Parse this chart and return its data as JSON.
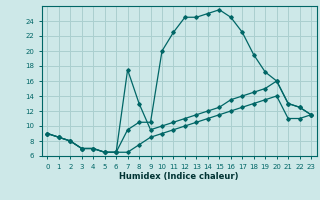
{
  "xlabel": "Humidex (Indice chaleur)",
  "background_color": "#cde8e8",
  "grid_color": "#aacfcf",
  "line_color": "#006666",
  "xlim": [
    -0.5,
    23.5
  ],
  "ylim": [
    6,
    26
  ],
  "yticks": [
    6,
    8,
    10,
    12,
    14,
    16,
    18,
    20,
    22,
    24
  ],
  "xticks": [
    0,
    1,
    2,
    3,
    4,
    5,
    6,
    7,
    8,
    9,
    10,
    11,
    12,
    13,
    14,
    15,
    16,
    17,
    18,
    19,
    20,
    21,
    22,
    23
  ],
  "line1_x": [
    0,
    1,
    2,
    3,
    4,
    5,
    6,
    7,
    8,
    9,
    10,
    11,
    12,
    13,
    14,
    15,
    16,
    17,
    18,
    19,
    20,
    21,
    22,
    23
  ],
  "line1_y": [
    9.0,
    8.5,
    8.0,
    7.0,
    7.0,
    6.5,
    6.5,
    9.5,
    10.5,
    10.5,
    20.0,
    22.5,
    24.5,
    24.5,
    25.0,
    25.5,
    24.5,
    22.5,
    19.5,
    17.2,
    16.0,
    13.0,
    12.5,
    11.5
  ],
  "line2_x": [
    0,
    1,
    2,
    3,
    4,
    5,
    6,
    7,
    8,
    9,
    10,
    11,
    12,
    13,
    14,
    15,
    16,
    17,
    18,
    19,
    20,
    21,
    22,
    23
  ],
  "line2_y": [
    9.0,
    8.5,
    8.0,
    7.0,
    7.0,
    6.5,
    6.5,
    17.5,
    13.0,
    9.5,
    10.0,
    10.5,
    11.0,
    11.5,
    12.0,
    12.5,
    13.5,
    14.0,
    14.5,
    15.0,
    16.0,
    13.0,
    12.5,
    11.5
  ],
  "line3_x": [
    0,
    1,
    2,
    3,
    4,
    5,
    6,
    7,
    8,
    9,
    10,
    11,
    12,
    13,
    14,
    15,
    16,
    17,
    18,
    19,
    20,
    21,
    22,
    23
  ],
  "line3_y": [
    9.0,
    8.5,
    8.0,
    7.0,
    7.0,
    6.5,
    6.5,
    6.5,
    7.5,
    8.5,
    9.0,
    9.5,
    10.0,
    10.5,
    11.0,
    11.5,
    12.0,
    12.5,
    13.0,
    13.5,
    14.0,
    11.0,
    11.0,
    11.5
  ]
}
